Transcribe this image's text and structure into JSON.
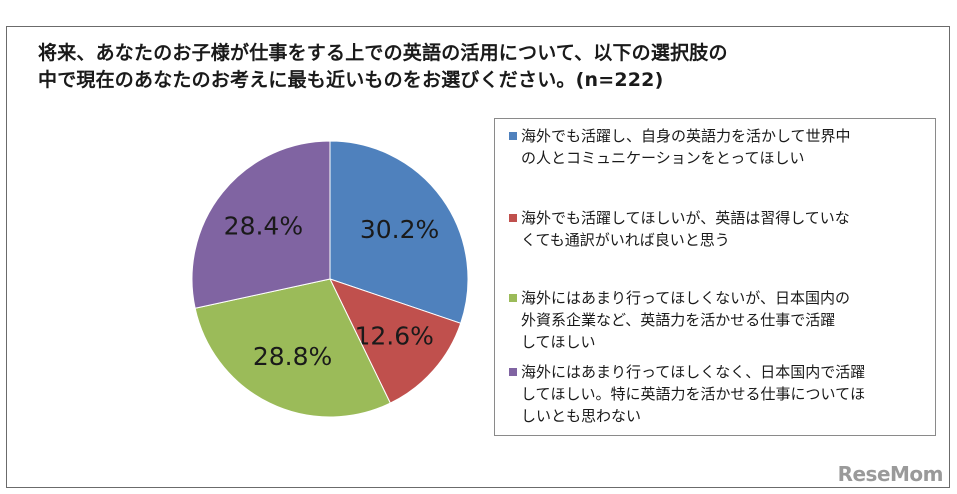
{
  "title_lines": [
    "将来、あなたのお子様が仕事をする上での英語の活用について、以下の選択肢の",
    "中で現在のあなたのお考えに最も近いものをお選びください。(n=222)"
  ],
  "chart_data": {
    "type": "pie",
    "title": "将来、あなたのお子様が仕事をする上での英語の活用について、以下の選択肢の中で現在のあなたのお考えに最も近いものをお選びください。(n=222)",
    "slices": [
      {
        "label": "海外でも活躍し、自身の英語力を活かして世界中の人とコミュニケーションをとってほしい",
        "value": 30.2,
        "display": "30.2%",
        "color": "#4f81bd"
      },
      {
        "label": "海外でも活躍してほしいが、英語は習得していなくても通訳がいれば良いと思う",
        "value": 12.6,
        "display": "12.6%",
        "color": "#c0504d"
      },
      {
        "label": "海外にはあまり行ってほしくないが、日本国内の外資系企業など、英語力を活かせる仕事で活躍してほしい",
        "value": 28.8,
        "display": "28.8%",
        "color": "#9bbb59"
      },
      {
        "label": "海外にはあまり行ってほしくなく、日本国内で活躍してほしい。特に英語力を活かせる仕事についてほしいとも思わない",
        "value": 28.4,
        "display": "28.4%",
        "color": "#8064a2"
      }
    ],
    "legend_position": "right"
  },
  "legend_lines": [
    [
      "海外でも活躍し、自身の英語力を活かして世界中",
      "の人とコミュニケーションをとってほしい"
    ],
    [
      "海外でも活躍してほしいが、英語は習得していな",
      "くても通訳がいれば良いと思う"
    ],
    [
      "海外にはあまり行ってほしくないが、日本国内の",
      "外資系企業など、英語力を活かせる仕事で活躍",
      "してほしい"
    ],
    [
      "海外にはあまり行ってほしくなく、日本国内で活躍",
      "してほしい。特に英語力を活かせる仕事についてほ",
      "しいとも思わない"
    ]
  ],
  "watermark": "ReseMom"
}
